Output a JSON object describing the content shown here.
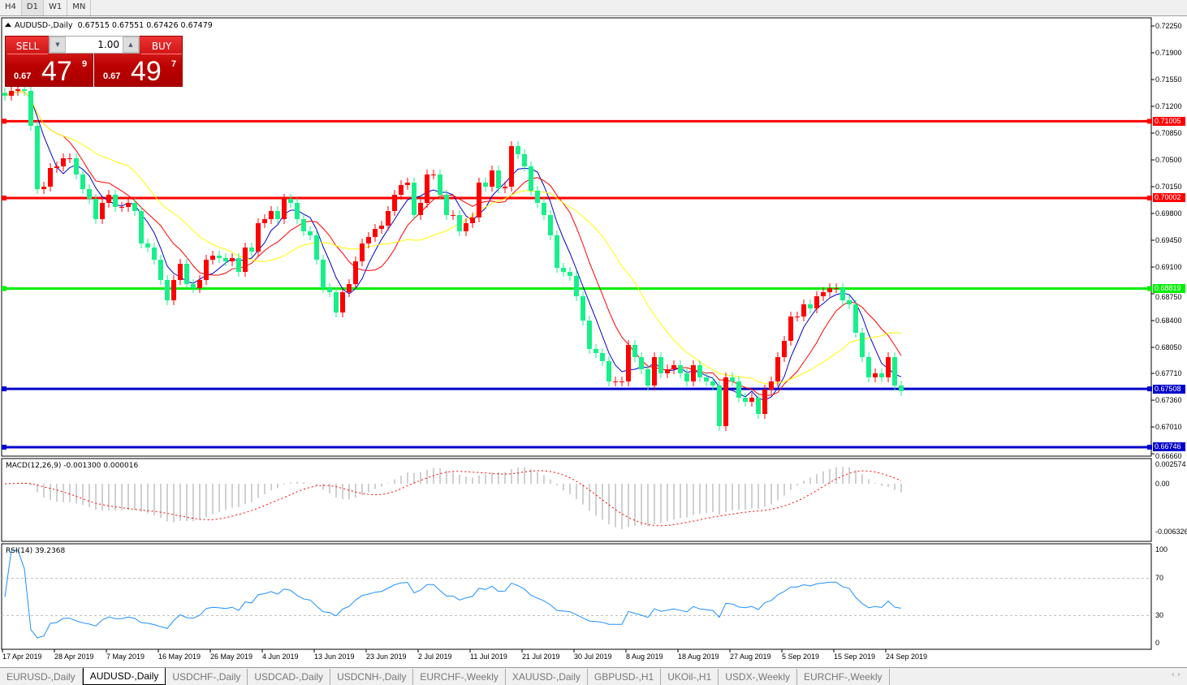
{
  "timeframes": [
    "H4",
    "D1",
    "W1",
    "MN"
  ],
  "active_timeframe": "D1",
  "chart": {
    "symbol_label": "AUDUSD-,Daily",
    "ohlc": "0.67515 0.67551 0.67426 0.67479"
  },
  "trade_panel": {
    "sell_label": "SELL",
    "buy_label": "BUY",
    "lot": "1.00",
    "sell_prefix": "0.67",
    "sell_big": "47",
    "sell_sup": "9",
    "buy_prefix": "0.67",
    "buy_big": "49",
    "buy_sup": "7"
  },
  "colors": {
    "bull": "#ff0000",
    "bear": "#17f08a",
    "ma_fast": "#0000cc",
    "ma_mid": "#ff0000",
    "ma_slow": "#ffff00",
    "rsi": "#1e90ff",
    "macd_hist": "#c0c0c0",
    "macd_signal": "#ff0000"
  },
  "price_axis": [
    "0.72250",
    "0.71900",
    "0.71550",
    "0.71200",
    "0.70850",
    "0.70500",
    "0.70150",
    "0.69800",
    "0.69450",
    "0.69100",
    "0.68750",
    "0.68400",
    "0.68050",
    "0.67710",
    "0.67360",
    "0.67010",
    "0.66660"
  ],
  "hlines": [
    {
      "price": "0.71005",
      "color": "#ff0000"
    },
    {
      "price": "0.70002",
      "color": "#ff0000"
    },
    {
      "price": "0.68819",
      "color": "#00ee00"
    },
    {
      "price": "0.67508",
      "color": "#0000cc"
    },
    {
      "price": "0.66746",
      "color": "#0000cc"
    }
  ],
  "macd": {
    "label": "MACD(12,26,9) -0.001300 0.000016",
    "axis": [
      "0.002574",
      "0.00",
      "-0.006326"
    ]
  },
  "rsi": {
    "label": "RSI(14) 39.2368",
    "axis": [
      "100",
      "70",
      "30",
      "0"
    ]
  },
  "date_axis": [
    "17 Apr 2019",
    "28 Apr 2019",
    "7 May 2019",
    "16 May 2019",
    "26 May 2019",
    "4 Jun 2019",
    "13 Jun 2019",
    "23 Jun 2019",
    "2 Jul 2019",
    "11 Jul 2019",
    "21 Jul 2019",
    "30 Jul 2019",
    "8 Aug 2019",
    "18 Aug 2019",
    "27 Aug 2019",
    "5 Sep 2019",
    "15 Sep 2019",
    "24 Sep 2019"
  ],
  "chart_data": {
    "type": "candlestick",
    "ylim": [
      0.6666,
      0.7225
    ],
    "close": [
      0.71338,
      0.71402,
      0.71423,
      0.71402,
      0.70945,
      0.70118,
      0.7015,
      0.70394,
      0.70415,
      0.70521,
      0.70521,
      0.70309,
      0.70118,
      0.69991,
      0.69726,
      0.69938,
      0.70044,
      0.69885,
      0.69885,
      0.69938,
      0.69832,
      0.69408,
      0.69355,
      0.69195,
      0.6893,
      0.68665,
      0.6893,
      0.69142,
      0.68877,
      0.68824,
      0.6893,
      0.69195,
      0.69249,
      0.69217,
      0.69174,
      0.69217,
      0.69036,
      0.69355,
      0.69302,
      0.69673,
      0.69726,
      0.69832,
      0.69726,
      0.69991,
      0.69938,
      0.69726,
      0.69567,
      0.69514,
      0.69195,
      0.68824,
      0.68771,
      0.68506,
      0.68771,
      0.68877,
      0.69174,
      0.69408,
      0.69492,
      0.69598,
      0.69641,
      0.69832,
      0.70044,
      0.70171,
      0.70203,
      0.69779,
      0.69938,
      0.70309,
      0.70309,
      0.70044,
      0.69779,
      0.69779,
      0.69567,
      0.69673,
      0.69748,
      0.70203,
      0.7015,
      0.70362,
      0.70129,
      0.7015,
      0.7068,
      0.70574,
      0.70415,
      0.70097,
      0.69938,
      0.69779,
      0.69514,
      0.69089,
      0.69036,
      0.68984,
      0.68718,
      0.684,
      0.68029,
      0.67976,
      0.6787,
      0.67605,
      0.67605,
      0.67605,
      0.68082,
      0.67923,
      0.67764,
      0.67552,
      0.67923,
      0.67711,
      0.67764,
      0.67817,
      0.67711,
      0.67605,
      0.67817,
      0.67658,
      0.67605,
      0.67552,
      0.67021,
      0.67658,
      0.67605,
      0.67392,
      0.67339,
      0.67392,
      0.6718,
      0.67499,
      0.67605,
      0.67923,
      0.68135,
      0.68453,
      0.68453,
      0.68612,
      0.68559,
      0.68718,
      0.68771,
      0.68824,
      0.68824,
      0.68665,
      0.68612,
      0.68241,
      0.67923,
      0.67658,
      0.67711,
      0.67658,
      0.67923,
      0.67552,
      0.67479
    ]
  },
  "symbol_tabs": [
    "EURUSD-,Daily",
    "AUDUSD-,Daily",
    "USDCHF-,Daily",
    "USDCAD-,Daily",
    "USDCNH-,Daily",
    "EURCHF-,Weekly",
    "XAUUSD-,Daily",
    "GBPUSD-,H1",
    "UKOil-,H1",
    "USDX-,Weekly",
    "EURCHF-,Weekly"
  ],
  "active_tab": "AUDUSD-,Daily",
  "tab_scroll": "‹ ›"
}
